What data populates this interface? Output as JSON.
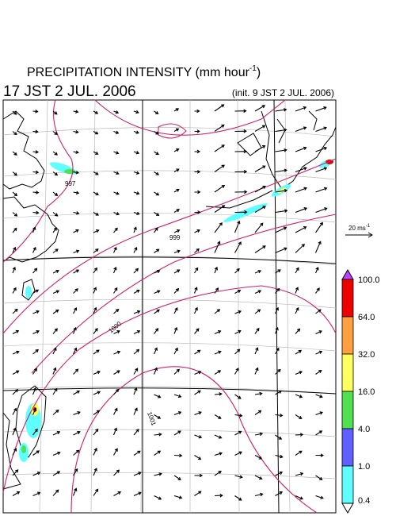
{
  "header": {
    "title": "PRECIPITATION INTENSITY (mm hour",
    "title_exponent": "-1",
    "title_close": ")",
    "valid_time": "17 JST 2 JUL. 2006",
    "init_time": "(init. 9 JST 2 JUL. 2006)"
  },
  "wind_scale": {
    "label": "20 ms",
    "exponent": "-1"
  },
  "contour_labels": [
    "997",
    "999",
    "1000",
    "1001"
  ],
  "colorbar": {
    "levels": [
      "100.0",
      "64.0",
      "32.0",
      "16.0",
      "4.0",
      "1.0",
      "0.4"
    ],
    "colors": [
      "#ee0000",
      "#ffa040",
      "#ffff60",
      "#50e050",
      "#6060ff",
      "#60ffff"
    ],
    "over_color": "#c040ff",
    "under_color": "#ffffff"
  }
}
